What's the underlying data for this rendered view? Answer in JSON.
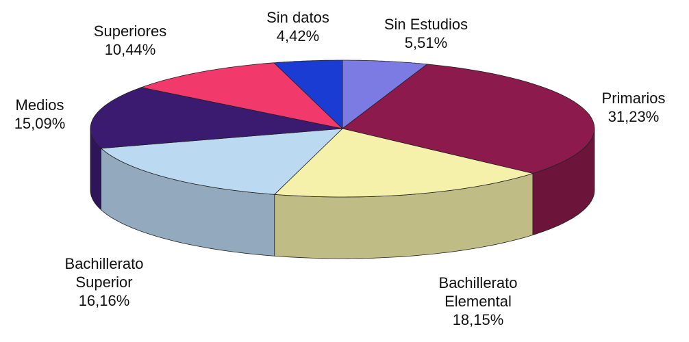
{
  "chart_data": {
    "type": "pie",
    "categories": [
      "Sin Estudios",
      "Primarios",
      "Bachillerato Elemental",
      "Bachillerato Superior",
      "Medios",
      "Superiores",
      "Sin datos"
    ],
    "values": [
      5.51,
      31.23,
      18.15,
      16.16,
      15.09,
      10.44,
      4.42
    ],
    "value_labels": [
      "5,51%",
      "31,23%",
      "18,15%",
      "16,16%",
      "15,09%",
      "10,44%",
      "4,42%"
    ],
    "colors": [
      "#7b7be3",
      "#8c1a4c",
      "#f6f1aa",
      "#bcd9f2",
      "#3b1b70",
      "#f2396b",
      "#1a3cd2"
    ]
  }
}
